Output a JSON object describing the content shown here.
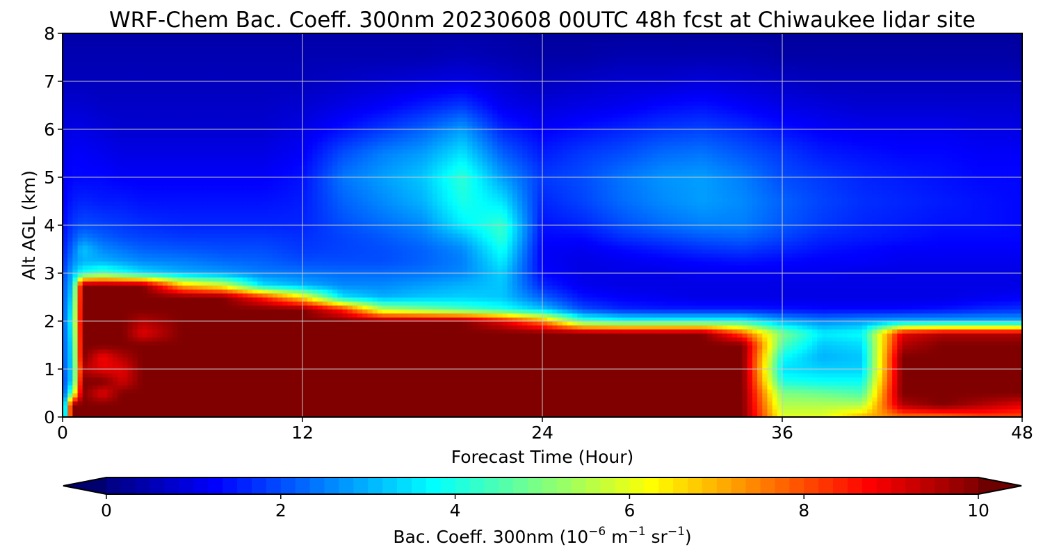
{
  "chart_data": {
    "type": "heatmap",
    "title": "WRF-Chem Bac. Coeff. 300nm  20230608 00UTC 48h fcst at Chiwaukee lidar site",
    "xlabel": "Forecast Time (Hour)",
    "ylabel": "Alt AGL (km)",
    "xlim": [
      0,
      48
    ],
    "ylim": [
      0,
      8
    ],
    "x_ticks": [
      "0",
      "12",
      "24",
      "36",
      "48"
    ],
    "y_ticks": [
      "0",
      "1",
      "2",
      "3",
      "4",
      "5",
      "6",
      "7",
      "8"
    ],
    "grid": true,
    "colormap": "jet",
    "colorbar": {
      "orientation": "horizontal",
      "extend": "both",
      "range": [
        0,
        10
      ],
      "ticks": [
        "0",
        "2",
        "4",
        "6",
        "8",
        "10"
      ],
      "label_main": "Bac. Coeff. 300nm  (10",
      "label_exp1": "−6",
      "label_unit1": " m",
      "label_exp2": "−1",
      "label_unit2": " sr",
      "label_exp3": "−1",
      "label_close": ")"
    },
    "x_hours": [
      0,
      0.5,
      1,
      2,
      3,
      4,
      6,
      8,
      10,
      12,
      14,
      16,
      18,
      20,
      22,
      24,
      26,
      28,
      30,
      32,
      34,
      36,
      38,
      40,
      42,
      44,
      46,
      48
    ],
    "z_km": [
      0,
      0.25,
      0.5,
      0.75,
      1.0,
      1.25,
      1.5,
      1.75,
      2.0,
      2.25,
      2.5,
      2.75,
      3.0,
      3.25,
      3.5,
      3.75,
      4.0,
      4.5,
      5.0,
      5.5,
      6.0,
      6.5,
      7.0,
      7.5,
      8.0
    ],
    "values_by_time": [
      [
        1.5,
        1.6,
        1.7,
        1.8,
        1.9,
        2.0,
        2.0,
        2.0,
        2.0,
        2.0,
        2.0,
        2.0,
        1.8,
        1.6,
        1.5,
        1.4,
        1.3,
        1.2,
        1.1,
        1.0,
        0.9,
        0.8,
        0.6,
        0.5,
        0.4
      ],
      [
        10,
        10,
        5.0,
        3.5,
        3.5,
        3.5,
        3.6,
        3.8,
        4.0,
        3.8,
        3.5,
        3.2,
        3.0,
        2.6,
        2.3,
        2.0,
        1.8,
        1.5,
        1.3,
        1.2,
        1.0,
        0.8,
        0.6,
        0.5,
        0.4
      ],
      [
        10,
        10,
        10,
        10,
        9.5,
        10,
        10,
        10,
        10,
        10,
        10,
        10,
        4.0,
        3.0,
        3.2,
        2.5,
        2.0,
        1.6,
        1.3,
        1.2,
        1.0,
        0.8,
        0.6,
        0.5,
        0.4
      ],
      [
        10,
        10,
        9.0,
        10,
        9.0,
        8.8,
        10,
        10,
        10,
        10,
        10,
        10,
        4.5,
        3.0,
        2.6,
        2.2,
        1.9,
        1.5,
        1.3,
        1.1,
        0.9,
        0.7,
        0.6,
        0.5,
        0.4
      ],
      [
        10,
        10,
        10,
        9.2,
        9.0,
        9.5,
        10,
        10,
        10,
        10,
        10,
        10,
        4.0,
        2.8,
        2.4,
        2.0,
        1.8,
        1.5,
        1.2,
        1.0,
        0.8,
        0.7,
        0.6,
        0.5,
        0.4
      ],
      [
        10,
        10,
        10,
        10,
        10,
        10,
        10,
        9.0,
        9.5,
        10,
        10,
        10,
        3.5,
        2.6,
        2.2,
        1.9,
        1.7,
        1.4,
        1.2,
        1.0,
        0.8,
        0.7,
        0.6,
        0.5,
        0.4
      ],
      [
        10,
        10,
        10,
        10,
        10,
        10,
        10,
        10,
        10,
        10,
        10,
        7.0,
        3.0,
        2.5,
        2.1,
        1.8,
        1.6,
        1.4,
        1.2,
        1.0,
        0.8,
        0.7,
        0.6,
        0.5,
        0.4
      ],
      [
        10,
        10,
        10,
        10,
        10,
        10,
        10,
        10,
        10,
        10,
        10,
        6.0,
        2.8,
        2.3,
        2.0,
        1.8,
        1.6,
        1.4,
        1.2,
        1.0,
        0.8,
        0.7,
        0.6,
        0.5,
        0.4
      ],
      [
        10,
        10,
        10,
        10,
        10,
        10,
        10,
        10,
        10,
        10,
        8.5,
        3.5,
        2.5,
        2.2,
        2.0,
        1.8,
        1.6,
        1.4,
        1.2,
        1.0,
        0.8,
        0.7,
        0.6,
        0.5,
        0.4
      ],
      [
        10,
        10,
        10,
        10,
        10,
        10,
        10,
        10,
        10,
        10,
        6.5,
        3.0,
        2.4,
        2.0,
        1.8,
        1.7,
        1.6,
        1.5,
        1.4,
        1.2,
        1.0,
        0.8,
        0.6,
        0.5,
        0.4
      ],
      [
        10,
        10,
        10,
        10,
        10,
        10,
        10,
        10,
        10,
        8.5,
        3.5,
        2.6,
        2.3,
        2.0,
        1.9,
        1.9,
        2.0,
        2.2,
        2.4,
        2.0,
        1.4,
        1.0,
        0.7,
        0.5,
        0.4
      ],
      [
        10,
        10,
        10,
        10,
        10,
        10,
        10,
        10,
        10,
        5.5,
        3.0,
        2.6,
        2.3,
        2.0,
        2.0,
        2.1,
        2.3,
        2.6,
        2.8,
        2.5,
        1.8,
        1.2,
        0.8,
        0.5,
        0.4
      ],
      [
        10,
        10,
        10,
        10,
        10,
        10,
        10,
        10,
        10,
        5.0,
        3.2,
        2.8,
        2.4,
        2.2,
        2.2,
        2.4,
        2.6,
        3.0,
        3.2,
        2.8,
        2.2,
        1.5,
        0.9,
        0.5,
        0.4
      ],
      [
        10,
        10,
        10,
        10,
        10,
        10,
        10,
        10,
        10,
        4.5,
        3.3,
        3.0,
        2.6,
        2.5,
        2.6,
        3.0,
        3.6,
        4.0,
        4.2,
        3.5,
        2.8,
        1.8,
        1.0,
        0.6,
        0.4
      ],
      [
        10,
        10,
        10,
        10,
        10,
        10,
        10,
        10,
        9.0,
        4.0,
        3.2,
        3.2,
        3.3,
        3.6,
        3.9,
        4.2,
        4.3,
        3.5,
        2.8,
        2.2,
        1.6,
        1.1,
        0.8,
        0.5,
        0.4
      ],
      [
        10,
        10,
        10,
        10,
        10,
        10,
        10,
        10,
        7.5,
        3.2,
        2.2,
        1.6,
        1.3,
        1.2,
        1.2,
        1.3,
        1.4,
        1.6,
        1.8,
        1.5,
        1.2,
        0.9,
        0.6,
        0.4,
        0.3
      ],
      [
        10,
        10,
        10,
        10,
        10,
        10,
        10,
        10,
        4.5,
        2.0,
        1.4,
        1.1,
        1.0,
        1.0,
        1.1,
        1.3,
        1.6,
        1.9,
        2.0,
        1.8,
        1.4,
        1.0,
        0.7,
        0.4,
        0.3
      ],
      [
        10,
        10,
        10,
        10,
        10,
        10,
        10,
        10,
        4.0,
        1.6,
        1.2,
        1.0,
        1.0,
        1.1,
        1.3,
        1.7,
        2.0,
        2.3,
        2.4,
        2.0,
        1.6,
        1.1,
        0.8,
        0.5,
        0.3
      ],
      [
        10,
        10,
        10,
        10,
        10,
        10,
        10,
        10,
        4.0,
        1.5,
        1.1,
        1.0,
        1.0,
        1.2,
        1.5,
        1.9,
        2.3,
        2.6,
        2.7,
        2.3,
        1.8,
        1.3,
        0.8,
        0.5,
        0.3
      ],
      [
        10,
        10,
        10,
        10,
        10,
        10,
        10,
        10,
        4.0,
        1.5,
        1.0,
        1.0,
        1.1,
        1.3,
        1.7,
        2.1,
        2.5,
        2.8,
        2.8,
        2.4,
        1.9,
        1.4,
        0.9,
        0.5,
        0.3
      ],
      [
        10,
        10,
        10,
        10,
        10,
        10,
        10,
        8.0,
        4.0,
        1.5,
        1.0,
        1.0,
        1.1,
        1.4,
        1.8,
        2.2,
        2.5,
        2.6,
        2.5,
        2.1,
        1.7,
        1.2,
        0.8,
        0.5,
        0.3
      ],
      [
        6.0,
        5.5,
        5.0,
        4.0,
        3.5,
        3.8,
        4.5,
        5.0,
        3.0,
        1.4,
        1.0,
        1.0,
        1.1,
        1.3,
        1.6,
        1.9,
        2.1,
        2.2,
        2.0,
        1.8,
        1.4,
        1.0,
        0.7,
        0.4,
        0.3
      ],
      [
        6.0,
        5.5,
        4.8,
        3.8,
        3.3,
        3.0,
        3.2,
        3.6,
        2.6,
        1.3,
        1.0,
        1.0,
        1.1,
        1.2,
        1.4,
        1.6,
        1.8,
        1.9,
        1.8,
        1.5,
        1.2,
        0.9,
        0.6,
        0.4,
        0.3
      ],
      [
        7.0,
        5.5,
        4.5,
        3.8,
        3.3,
        3.2,
        3.4,
        3.8,
        2.8,
        1.3,
        1.0,
        1.0,
        1.0,
        1.2,
        1.3,
        1.5,
        1.6,
        1.7,
        1.6,
        1.4,
        1.1,
        0.8,
        0.6,
        0.4,
        0.3
      ],
      [
        7.5,
        9.5,
        10,
        10,
        10,
        10,
        9.5,
        9.0,
        3.0,
        1.3,
        1.0,
        1.0,
        1.0,
        1.1,
        1.2,
        1.4,
        1.5,
        1.6,
        1.5,
        1.3,
        1.1,
        0.8,
        0.6,
        0.4,
        0.3
      ],
      [
        7.5,
        10,
        10,
        10,
        10,
        10,
        10,
        9.5,
        3.0,
        1.4,
        1.0,
        1.0,
        1.0,
        1.1,
        1.2,
        1.3,
        1.4,
        1.5,
        1.4,
        1.3,
        1.1,
        0.8,
        0.6,
        0.4,
        0.3
      ],
      [
        8.0,
        9.5,
        10,
        10,
        10,
        10,
        10,
        9.5,
        3.0,
        1.6,
        1.1,
        1.0,
        1.0,
        1.1,
        1.2,
        1.3,
        1.4,
        1.4,
        1.3,
        1.2,
        1.0,
        0.8,
        0.6,
        0.4,
        0.3
      ],
      [
        8.0,
        9.0,
        10,
        10,
        10,
        10,
        10,
        9.5,
        3.0,
        1.7,
        1.2,
        1.0,
        1.0,
        1.1,
        1.2,
        1.3,
        1.3,
        1.3,
        1.3,
        1.2,
        1.0,
        0.8,
        0.6,
        0.4,
        0.3
      ]
    ]
  }
}
